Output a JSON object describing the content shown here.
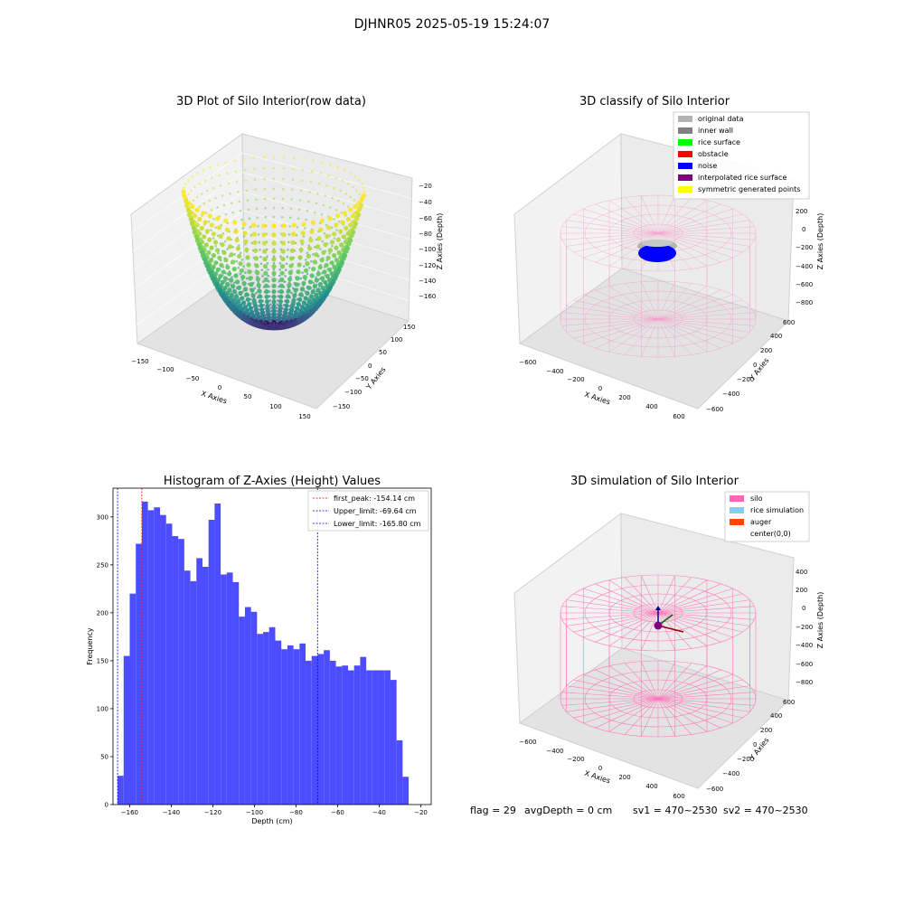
{
  "page": {
    "suptitle": "DJHNR05 2025-05-19 15:24:07"
  },
  "colors": {
    "pane": "#f2f2f2",
    "pane_dark": "#e6e6e6",
    "grid": "#ffffff",
    "silo": "#ff69b4",
    "hist_bar": "#4d4dff",
    "first_peak_line": "#ff0000",
    "limit_line": "#0000ff"
  },
  "panels": {
    "raw": {
      "title": "3D Plot of Silo Interior(row data)",
      "xlabel": "X Axies",
      "ylabel": "Y Axies",
      "zlabel": "Z Axies (Depth)",
      "x_ticks": [
        "−150",
        "−100",
        "−50",
        "0",
        "50",
        "100",
        "150"
      ],
      "y_ticks": [
        "−150",
        "−100",
        "−50",
        "0",
        "50",
        "100",
        "150"
      ],
      "z_ticks": [
        "−20",
        "−40",
        "−60",
        "−80",
        "−100",
        "−120",
        "−140",
        "−160"
      ]
    },
    "classify": {
      "title": "3D classify of Silo Interior",
      "xlabel": "X Axies",
      "ylabel": "Y Axies",
      "zlabel": "Z Axies (Depth)",
      "x_ticks": [
        "−600",
        "−400",
        "−200",
        "0",
        "200",
        "400",
        "600"
      ],
      "y_ticks": [
        "−600",
        "−400",
        "−200",
        "0",
        "200",
        "400",
        "600"
      ],
      "z_ticks": [
        "200",
        "0",
        "−200",
        "−400",
        "−600",
        "−800"
      ],
      "legend": [
        {
          "label": "original data",
          "color": "#b3b3b3"
        },
        {
          "label": "inner wall",
          "color": "#808080"
        },
        {
          "label": "rice surface",
          "color": "#00ff00"
        },
        {
          "label": "obstacle",
          "color": "#ff0000"
        },
        {
          "label": "noise",
          "color": "#0000ff"
        },
        {
          "label": "interpolated rice surface",
          "color": "#800080"
        },
        {
          "label": "symmetric generated points",
          "color": "#ffff00"
        }
      ]
    },
    "sim": {
      "title": "3D simulation of Silo Interior",
      "xlabel": "X Axies",
      "ylabel": "Y Axies",
      "zlabel": "Z Axies (Depth)",
      "x_ticks": [
        "−600",
        "−400",
        "−200",
        "0",
        "200",
        "400",
        "600"
      ],
      "y_ticks": [
        "−600",
        "−400",
        "−200",
        "0",
        "200",
        "400",
        "600"
      ],
      "z_ticks": [
        "400",
        "200",
        "0",
        "−200",
        "−400",
        "−600",
        "−800"
      ],
      "legend": [
        {
          "label": "silo",
          "color": "#ff69b4"
        },
        {
          "label": "rice simulation",
          "color": "#87ceeb"
        },
        {
          "label": "auger",
          "color": "#ff4500"
        },
        {
          "label": "center(0,0)",
          "color": ""
        }
      ]
    }
  },
  "footer": {
    "flag": "flag = 29",
    "avg_depth": "avgDepth = 0 cm",
    "sv1": "sv1 = 470~2530",
    "sv2": "sv2 = 470~2530"
  },
  "chart_data": {
    "type": "bar",
    "title": "Histogram of Z-Axies (Height) Values",
    "xlabel": "Depth (cm)",
    "ylabel": "Frequency",
    "xlim": [
      -168,
      -15
    ],
    "ylim": [
      0,
      330
    ],
    "x_ticks": [
      -160,
      -140,
      -120,
      -100,
      -80,
      -60,
      -40,
      -20
    ],
    "x_tick_labels": [
      "−160",
      "−140",
      "−120",
      "−100",
      "−80",
      "−60",
      "−40",
      "−20"
    ],
    "y_ticks": [
      0,
      50,
      100,
      150,
      200,
      250,
      300
    ],
    "bin_start": -165.8,
    "bin_width": 2.916,
    "values": [
      30,
      155,
      220,
      272,
      316,
      307,
      310,
      302,
      293,
      280,
      277,
      244,
      233,
      257,
      248,
      297,
      314,
      240,
      242,
      232,
      196,
      206,
      201,
      178,
      180,
      185,
      171,
      162,
      166,
      162,
      168,
      150,
      155,
      157,
      161,
      150,
      144,
      145,
      140,
      145,
      154,
      140,
      140,
      140,
      140,
      130,
      67,
      29
    ],
    "legend": [
      {
        "label": "first_peak: -154.14 cm",
        "x": -154.14,
        "color": "#ff0000"
      },
      {
        "label": "Upper_limit: -69.64 cm",
        "x": -69.64,
        "color": "#0000ff"
      },
      {
        "label": "Lower_limit: -165.80 cm",
        "x": -165.8,
        "color": "#0000ff"
      }
    ],
    "legend_position": "top-right",
    "grid": false
  }
}
